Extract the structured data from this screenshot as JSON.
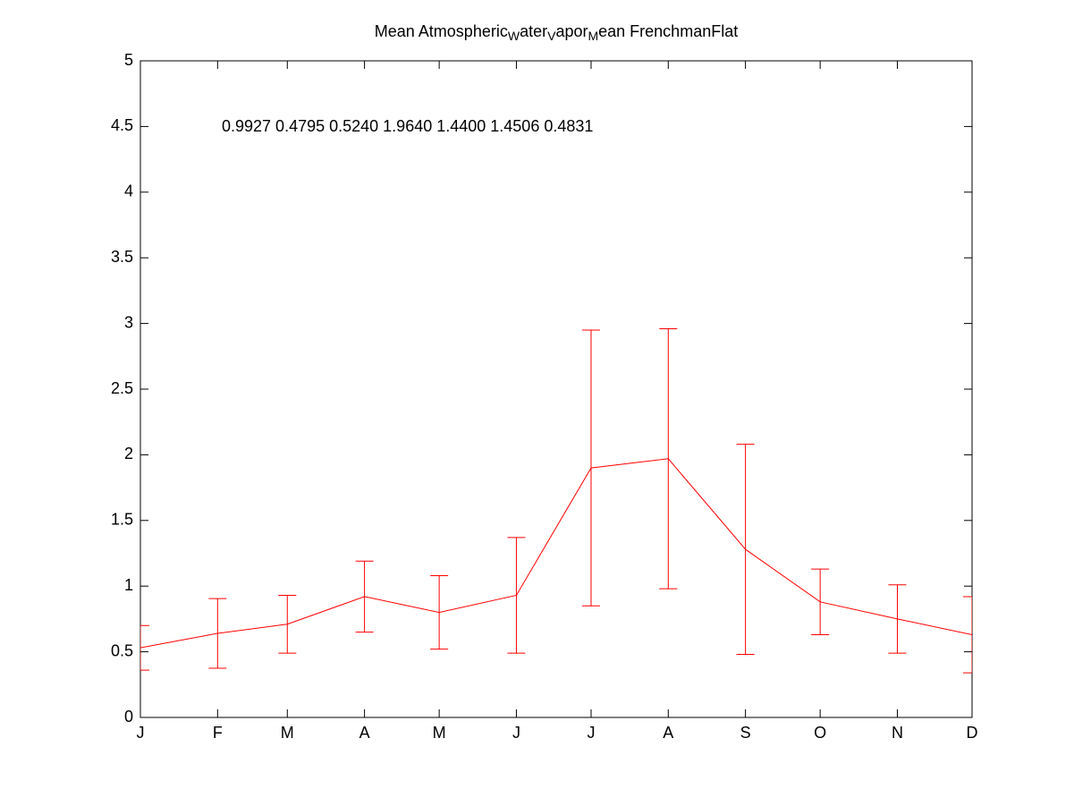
{
  "chart_data": {
    "type": "errorbar",
    "title_parts": [
      "Mean Atmospheric",
      "W",
      "ater",
      "V",
      "apor",
      "M",
      "ean FrenchmanFlat"
    ],
    "annotation": "0.9927  0.4795  0.5240  1.9640  1.4400  1.4506  0.4831",
    "x": [
      1,
      32,
      60,
      91,
      121,
      152,
      182,
      213,
      244,
      274,
      305,
      335
    ],
    "series": [
      {
        "color": "#ff0000",
        "values": [
          0.53,
          0.64,
          0.71,
          0.92,
          0.8,
          0.93,
          1.9,
          1.97,
          1.28,
          0.88,
          0.75,
          0.63
        ],
        "errors": [
          0.17,
          0.265,
          0.22,
          0.27,
          0.28,
          0.44,
          1.05,
          0.99,
          0.8,
          0.25,
          0.26,
          0.29
        ]
      }
    ],
    "xlim": [
      1,
      335
    ],
    "xticks": [
      {
        "value": 1,
        "label": "J"
      },
      {
        "value": 32,
        "label": "F"
      },
      {
        "value": 60,
        "label": "M"
      },
      {
        "value": 91,
        "label": "A"
      },
      {
        "value": 121,
        "label": "M"
      },
      {
        "value": 152,
        "label": "J"
      },
      {
        "value": 182,
        "label": "J"
      },
      {
        "value": 213,
        "label": "A"
      },
      {
        "value": 244,
        "label": "S"
      },
      {
        "value": 274,
        "label": "O"
      },
      {
        "value": 305,
        "label": "N"
      },
      {
        "value": 335,
        "label": "D"
      }
    ],
    "ylim": [
      0,
      5
    ],
    "yticks": [
      0,
      0.5,
      1,
      1.5,
      2,
      2.5,
      3,
      3.5,
      4,
      4.5,
      5
    ]
  }
}
